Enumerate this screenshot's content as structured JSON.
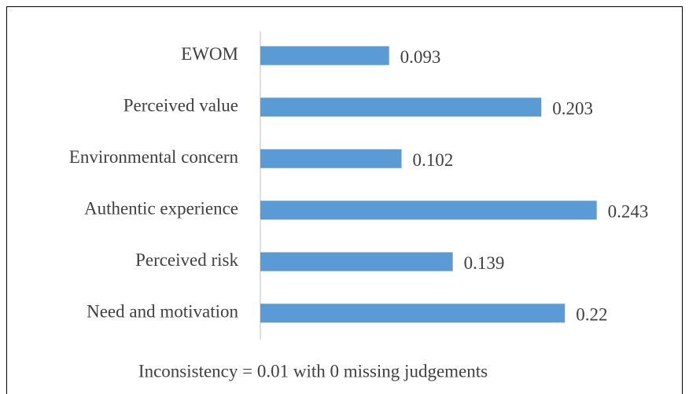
{
  "chart_data": {
    "type": "barh",
    "categories": [
      "EWOM",
      "Perceived value",
      "Environmental concern",
      "Authentic experience",
      "Perceived risk",
      "Need and motivation"
    ],
    "values": [
      0.093,
      0.203,
      0.102,
      0.243,
      0.139,
      0.22
    ],
    "color": "#5b9bd5",
    "xlim": [
      0,
      0.3
    ],
    "annotation": "Inconsistency = 0.01 with 0 missing judgements"
  }
}
